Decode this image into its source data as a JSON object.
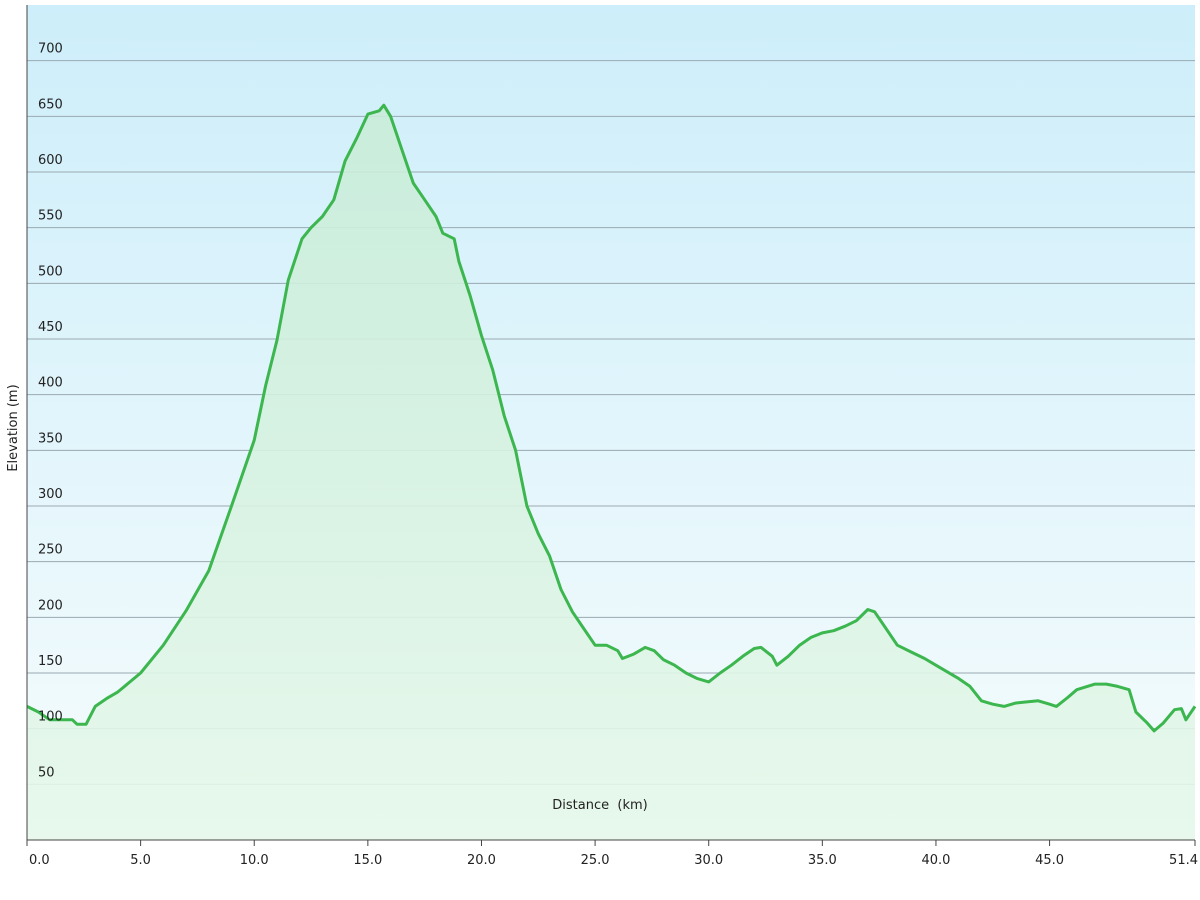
{
  "chart_data": {
    "type": "area",
    "x_label": "Distance  (km)",
    "y_label": "Elevation (m)",
    "color": "#3cb64e",
    "grid": true,
    "xlim": [
      0,
      51.4
    ],
    "ylim": [
      0,
      750
    ],
    "xticks": [
      {
        "value": 0,
        "label": "0.0"
      },
      {
        "value": 5,
        "label": "5.0"
      },
      {
        "value": 10,
        "label": "10.0"
      },
      {
        "value": 15,
        "label": "15.0"
      },
      {
        "value": 20,
        "label": "20.0"
      },
      {
        "value": 25,
        "label": "25.0"
      },
      {
        "value": 30,
        "label": "30.0"
      },
      {
        "value": 35,
        "label": "35.0"
      },
      {
        "value": 40,
        "label": "40.0"
      },
      {
        "value": 45,
        "label": "45.0"
      },
      51.4
    ],
    "yticks": [
      50,
      100,
      150,
      200,
      250,
      300,
      350,
      400,
      450,
      500,
      550,
      600,
      650,
      700
    ],
    "x": [
      0,
      0.5,
      1,
      1.5,
      2,
      2.2,
      2.6,
      3,
      3.5,
      4,
      5,
      6,
      7,
      8,
      9,
      10,
      10.5,
      11,
      11.5,
      12.1,
      12.5,
      13,
      13.5,
      14,
      14.5,
      15,
      15.5,
      15.7,
      16,
      16.5,
      17,
      17.5,
      18,
      18.3,
      18.8,
      19,
      19.5,
      20,
      20.5,
      21,
      21.5,
      22,
      22.5,
      23,
      23.5,
      24,
      24.5,
      25,
      25.5,
      26,
      26.2,
      26.7,
      27.2,
      27.6,
      28,
      28.5,
      29,
      29.5,
      30,
      30.5,
      31,
      31.5,
      32,
      32.3,
      32.8,
      33,
      33.5,
      34,
      34.5,
      35,
      35.5,
      36,
      36.5,
      37,
      37.3,
      37.8,
      38.3,
      39,
      39.5,
      40,
      41,
      41.5,
      42,
      42.5,
      43,
      43.5,
      44,
      44.5,
      45,
      45.3,
      45.8,
      46.2,
      47,
      47.5,
      48,
      48.5,
      48.8,
      49.3,
      49.6,
      50,
      50.5,
      50.8,
      51,
      51.4
    ],
    "values": [
      120,
      115,
      108,
      108,
      108,
      104,
      104,
      120,
      127,
      133,
      150,
      175,
      206,
      242,
      300,
      359,
      408,
      449,
      503,
      540,
      550,
      560,
      575,
      610,
      630,
      652,
      655,
      660,
      650,
      620,
      590,
      575,
      560,
      545,
      540,
      520,
      489,
      453,
      422,
      381,
      350,
      300,
      275,
      255,
      225,
      205,
      190,
      175,
      175,
      170,
      163,
      167,
      173,
      170,
      162,
      157,
      150,
      145,
      142,
      150,
      157,
      165,
      172,
      173,
      165,
      157,
      165,
      175,
      182,
      186,
      188,
      192,
      197,
      207,
      205,
      190,
      175,
      168,
      163,
      157,
      145,
      138,
      125,
      122,
      120,
      123,
      124,
      125,
      122,
      120,
      128,
      135,
      140,
      140,
      138,
      135,
      115,
      105,
      98,
      105,
      117,
      118,
      108,
      120
    ]
  }
}
